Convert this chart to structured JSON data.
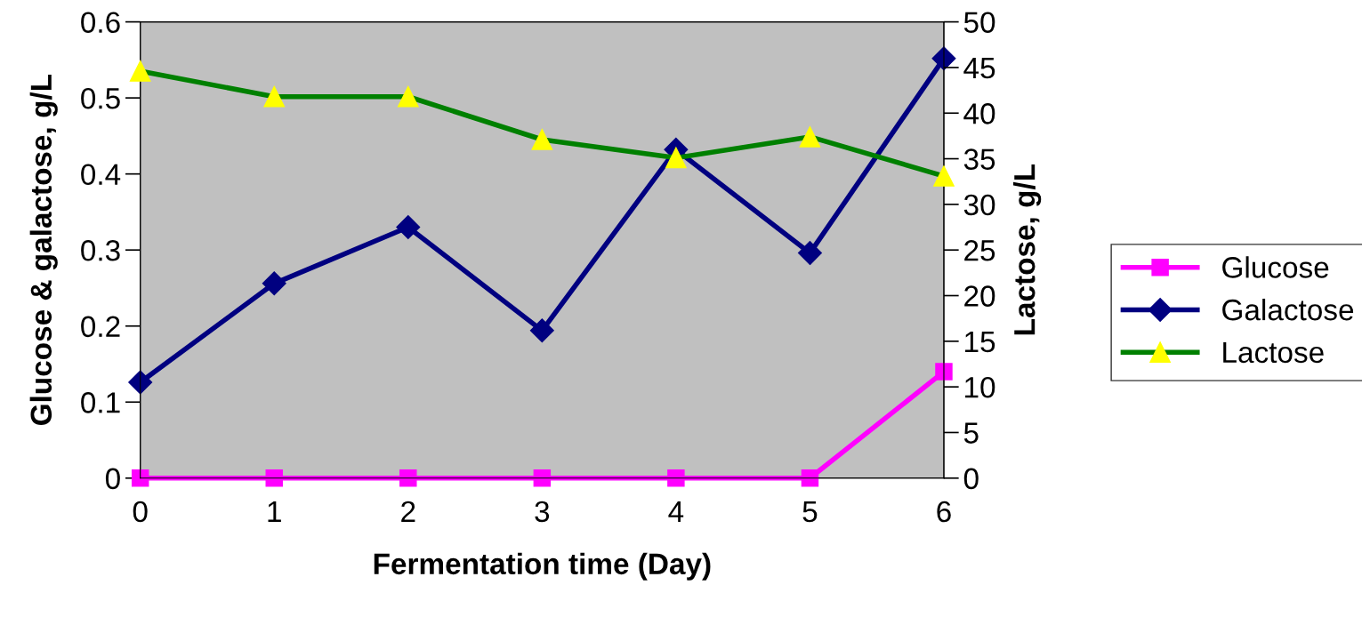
{
  "chart_data": {
    "type": "line",
    "xlabel": "Fermentation time (Day)",
    "ylabel": "Glucose & galactose, g/L",
    "y2label": "Lactose, g/L",
    "x": [
      0,
      1,
      2,
      3,
      4,
      5,
      6
    ],
    "xlim": [
      0,
      6
    ],
    "xticks": [
      0,
      1,
      2,
      3,
      4,
      5,
      6
    ],
    "ylim": [
      0,
      0.6
    ],
    "yticks": [
      0,
      0.1,
      0.2,
      0.3,
      0.4,
      0.5,
      0.6
    ],
    "y2lim": [
      0,
      50
    ],
    "y2ticks": [
      0,
      5,
      10,
      15,
      20,
      25,
      30,
      35,
      40,
      45,
      50
    ],
    "legend": "right",
    "grid": false,
    "series": [
      {
        "name": "Glucose",
        "color": "#ff00ff",
        "marker": "square",
        "values": [
          0,
          0,
          0,
          0,
          0,
          0,
          0.14
        ]
      },
      {
        "name": "Galactose",
        "color": "#000080",
        "marker": "diamond",
        "values": [
          0.126,
          0.256,
          0.33,
          0.194,
          0.432,
          0.296,
          0.552
        ]
      },
      {
        "name": "Lactose",
        "color": "#008000",
        "marker": "triangle",
        "colors": [
          "#ffff00",
          "#ffff00",
          "#ffff00",
          "#ffff00",
          "#ffff00",
          "#ffff00",
          "#ffff00"
        ],
        "axis": "y2",
        "values": [
          44.6,
          41.8,
          41.8,
          37.1,
          35.1,
          37.4,
          33.1
        ]
      }
    ]
  }
}
